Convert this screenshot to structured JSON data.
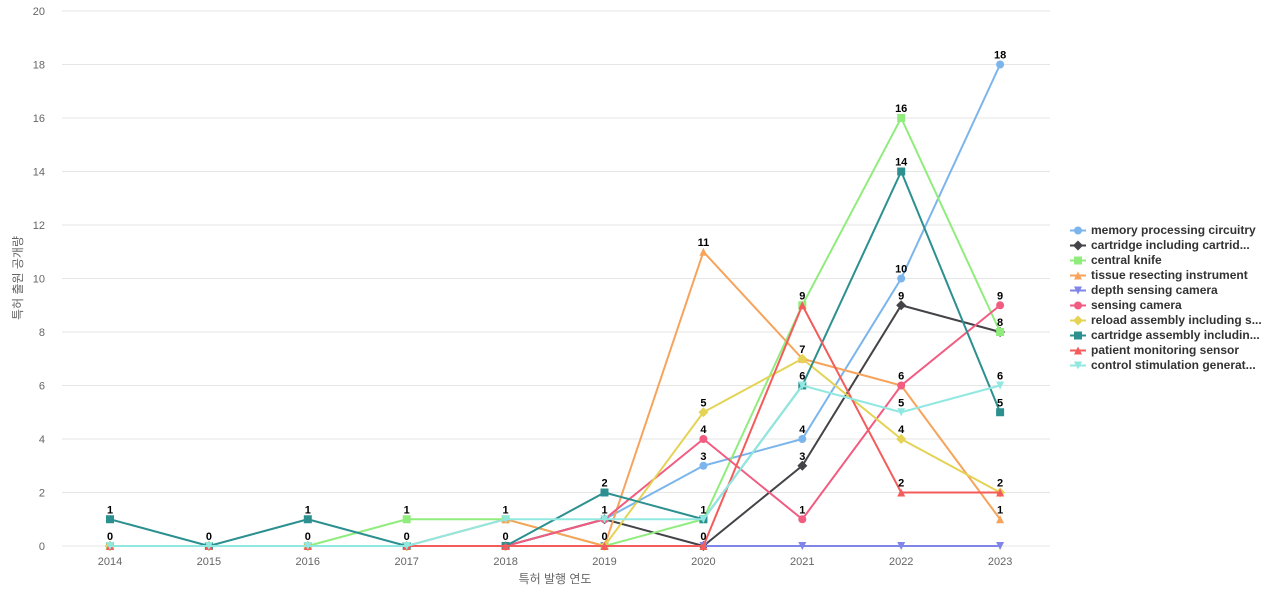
{
  "chart_data": {
    "type": "line",
    "title": "",
    "xlabel": "특허 발행 연도",
    "ylabel": "특허 출원 공개량",
    "x": [
      "2014",
      "2015",
      "2016",
      "2017",
      "2018",
      "2019",
      "2020",
      "2021",
      "2022",
      "2023"
    ],
    "ylim": [
      0,
      20
    ],
    "yticks": [
      "0",
      "2",
      "4",
      "6",
      "8",
      "10",
      "12",
      "14",
      "16",
      "18",
      "20"
    ],
    "grid": true,
    "legend_position": "right",
    "series": [
      {
        "name": "memory processing circuitry",
        "color": "#7cb5ec",
        "marker": "circle",
        "values": [
          0,
          0,
          0,
          0,
          0,
          1,
          3,
          4,
          10,
          18
        ]
      },
      {
        "name": "cartridge including cartrid...",
        "color": "#434348",
        "marker": "diamond",
        "values": [
          0,
          0,
          0,
          0,
          0,
          1,
          0,
          3,
          9,
          8
        ]
      },
      {
        "name": "central knife",
        "color": "#90ed7d",
        "marker": "square",
        "values": [
          0,
          0,
          0,
          1,
          1,
          0,
          1,
          9,
          16,
          8
        ]
      },
      {
        "name": "tissue resecting instrument",
        "color": "#f7a35c",
        "marker": "triangle",
        "values": [
          0,
          0,
          0,
          0,
          1,
          0,
          11,
          7,
          6,
          1
        ]
      },
      {
        "name": "depth sensing camera",
        "color": "#8085e9",
        "marker": "triangle-down",
        "values": [
          0,
          0,
          0,
          0,
          0,
          0,
          0,
          0,
          0,
          0
        ]
      },
      {
        "name": "sensing camera",
        "color": "#f15c80",
        "marker": "circle",
        "values": [
          0,
          0,
          0,
          0,
          0,
          1,
          4,
          1,
          6,
          9
        ]
      },
      {
        "name": "reload assembly including s...",
        "color": "#e4d354",
        "marker": "diamond",
        "values": [
          0,
          0,
          0,
          0,
          0,
          0,
          5,
          7,
          4,
          2
        ]
      },
      {
        "name": "cartridge assembly includin...",
        "color": "#2b908f",
        "marker": "square",
        "values": [
          1,
          0,
          1,
          0,
          0,
          2,
          1,
          6,
          14,
          5
        ]
      },
      {
        "name": "patient monitoring sensor",
        "color": "#f45b5b",
        "marker": "triangle",
        "values": [
          0,
          0,
          0,
          0,
          0,
          0,
          0,
          9,
          2,
          2
        ]
      },
      {
        "name": "control stimulation generat...",
        "color": "#91e8e1",
        "marker": "triangle-down",
        "values": [
          0,
          0,
          0,
          0,
          1,
          1,
          1,
          6,
          5,
          6
        ]
      }
    ],
    "data_labels": [
      {
        "x": "2014",
        "text": "1",
        "series": 7
      },
      {
        "x": "2014",
        "text": "0",
        "series": 9
      },
      {
        "x": "2015",
        "text": "0",
        "series": 9
      },
      {
        "x": "2016",
        "text": "1",
        "series": 7
      },
      {
        "x": "2016",
        "text": "0",
        "series": 9
      },
      {
        "x": "2017",
        "text": "1",
        "series": 2
      },
      {
        "x": "2017",
        "text": "0",
        "series": 9
      },
      {
        "x": "2018",
        "text": "1",
        "series": 9
      },
      {
        "x": "2018",
        "text": "0",
        "series": 7
      },
      {
        "x": "2019",
        "text": "2",
        "series": 7
      },
      {
        "x": "2019",
        "text": "1",
        "series": 9
      },
      {
        "x": "2019",
        "text": "0",
        "series": 3
      },
      {
        "x": "2020",
        "text": "11",
        "series": 3
      },
      {
        "x": "2020",
        "text": "5",
        "series": 6
      },
      {
        "x": "2020",
        "text": "4",
        "series": 5
      },
      {
        "x": "2020",
        "text": "3",
        "series": 0
      },
      {
        "x": "2020",
        "text": "1",
        "series": 9
      },
      {
        "x": "2020",
        "text": "0",
        "series": 1
      },
      {
        "x": "2021",
        "text": "9",
        "series": 2
      },
      {
        "x": "2021",
        "text": "7",
        "series": 3
      },
      {
        "x": "2021",
        "text": "6",
        "series": 9
      },
      {
        "x": "2021",
        "text": "4",
        "series": 0
      },
      {
        "x": "2021",
        "text": "3",
        "series": 1
      },
      {
        "x": "2021",
        "text": "1",
        "series": 5
      },
      {
        "x": "2022",
        "text": "16",
        "series": 2
      },
      {
        "x": "2022",
        "text": "14",
        "series": 7
      },
      {
        "x": "2022",
        "text": "10",
        "series": 0
      },
      {
        "x": "2022",
        "text": "9",
        "series": 1
      },
      {
        "x": "2022",
        "text": "6",
        "series": 3
      },
      {
        "x": "2022",
        "text": "5",
        "series": 9
      },
      {
        "x": "2022",
        "text": "4",
        "series": 6
      },
      {
        "x": "2022",
        "text": "2",
        "series": 8
      },
      {
        "x": "2023",
        "text": "18",
        "series": 0
      },
      {
        "x": "2023",
        "text": "9",
        "series": 5
      },
      {
        "x": "2023",
        "text": "8",
        "series": 1
      },
      {
        "x": "2023",
        "text": "6",
        "series": 9
      },
      {
        "x": "2023",
        "text": "5",
        "series": 7
      },
      {
        "x": "2023",
        "text": "2",
        "series": 6
      },
      {
        "x": "2023",
        "text": "1",
        "series": 3
      }
    ]
  }
}
